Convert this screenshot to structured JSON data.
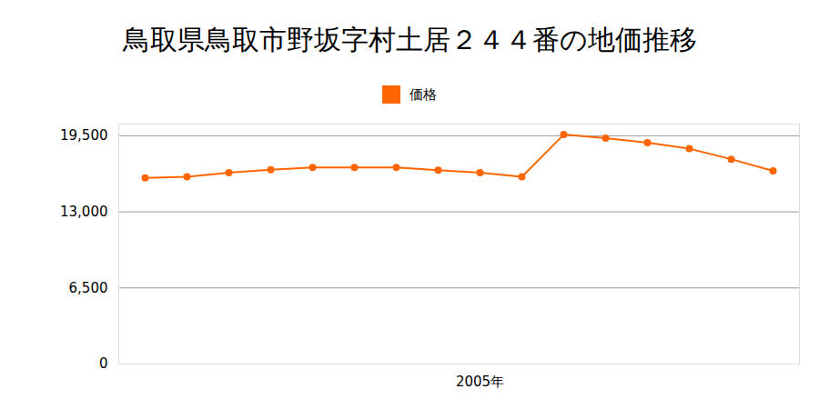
{
  "chart_data": {
    "type": "line",
    "title": "鳥取県鳥取市野坂字村土居２４４番の地価推移",
    "categories": [
      null,
      null,
      null,
      null,
      null,
      null,
      null,
      null,
      "2005年",
      null,
      null,
      null,
      null,
      null,
      null,
      null
    ],
    "series": [
      {
        "name": "価格",
        "color": "#ff6600",
        "marker": "circle",
        "values": [
          15900,
          16000,
          16350,
          16600,
          16800,
          16800,
          16800,
          16550,
          16350,
          16000,
          19600,
          19300,
          18900,
          18400,
          17500,
          16500
        ]
      }
    ],
    "ylim": [
      0,
      20500
    ],
    "yticks": [
      0,
      {
        "value": 6500,
        "label": "6,500"
      },
      {
        "value": 13000,
        "label": "13,000"
      },
      {
        "value": 19500,
        "label": "19,500"
      }
    ],
    "grid": true,
    "legend": "top"
  }
}
